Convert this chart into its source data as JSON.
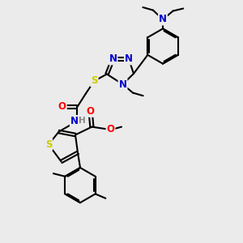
{
  "bg_color": "#ebebeb",
  "bond_color": "#000000",
  "bond_width": 1.5,
  "atom_colors": {
    "N": "#0000cc",
    "S": "#cccc00",
    "O": "#ff0000",
    "H": "#888888",
    "C": "#000000"
  },
  "font_size": 8.5,
  "title": ""
}
